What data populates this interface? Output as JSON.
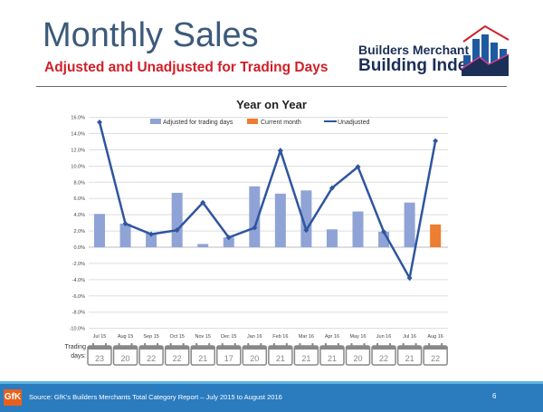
{
  "header": {
    "title": "Monthly Sales",
    "subtitle": "Adjusted and Unadjusted for Trading Days",
    "logo_line1": "Builders Merchant",
    "logo_line2": "Building Index"
  },
  "footer": {
    "logo": "GfK",
    "source": "Source: GfK's Builders Merchants Total Category Report – July 2015 to August 2016",
    "page": "6"
  },
  "trading_days_label": [
    "Trading",
    "days:"
  ],
  "trading_days": [
    "23",
    "20",
    "22",
    "22",
    "21",
    "17",
    "20",
    "21",
    "21",
    "21",
    "20",
    "22",
    "21",
    "22"
  ],
  "colors": {
    "adjusted": "#8fa3d6",
    "current": "#ed7d31",
    "unadjusted": "#2f559f"
  },
  "chart_data": {
    "type": "bar",
    "title": "Year on Year",
    "categories": [
      "Jul 15",
      "Aug 15",
      "Sep 15",
      "Oct 15",
      "Nov 15",
      "Dec 15",
      "Jan 16",
      "Feb 16",
      "Mar 16",
      "Apr 16",
      "May 16",
      "Jun 16",
      "Jul 16",
      "Aug 16"
    ],
    "series": [
      {
        "name": "Adjusted for trading days",
        "type": "bar",
        "values": [
          4.1,
          2.9,
          1.7,
          6.7,
          0.4,
          1.2,
          7.5,
          6.6,
          7.0,
          2.2,
          4.4,
          1.9,
          5.5,
          null
        ]
      },
      {
        "name": "Current month",
        "type": "bar",
        "values": [
          null,
          null,
          null,
          null,
          null,
          null,
          null,
          null,
          null,
          null,
          null,
          null,
          null,
          2.8
        ]
      },
      {
        "name": "Unadjusted",
        "type": "line",
        "values": [
          15.4,
          2.9,
          1.6,
          2.1,
          5.5,
          1.2,
          2.4,
          11.9,
          2.1,
          7.3,
          9.9,
          1.9,
          -3.8,
          13.1
        ]
      }
    ],
    "yticks": [
      "16.0%",
      "14.0%",
      "12.0%",
      "10.0%",
      "8.0%",
      "6.0%",
      "4.0%",
      "2.0%",
      "0.0%",
      "-2.0%",
      "-4.0%",
      "-6.0%",
      "-8.0%",
      "-10.0%"
    ],
    "ylim": [
      -10,
      16
    ],
    "grid": true,
    "legend": "top"
  }
}
